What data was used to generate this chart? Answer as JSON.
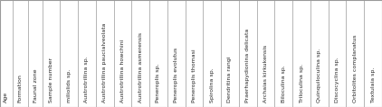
{
  "headers": [
    "Age",
    "Formation",
    "Faunal zone",
    "Sample number",
    "miliolids sp.",
    "Austrotrillina sp.",
    "Austrotrillina paucialveolata",
    "Austrotrillina howchini",
    "Austrotrillina asmerensis",
    "Peneroplis sp.",
    "Peneroplis evolutus",
    "Peneroplis thomasi",
    "Spirolina sp.",
    "Dendritina rangi",
    "Praerhapydionina delicata",
    "Archaias kirkukensis",
    "Biloculina sp.",
    "Triloculina sp.",
    "Quinquiloculina sp.",
    "Discocyclina sp.",
    "Orbitolites complanatus",
    "Textulaia sp."
  ],
  "bg_color": "#ffffff",
  "line_color": "#999999",
  "text_color": "#222222",
  "fontsize": 4.5,
  "rotation": 90,
  "fig_width": 4.22,
  "fig_height": 1.19,
  "dpi": 100
}
